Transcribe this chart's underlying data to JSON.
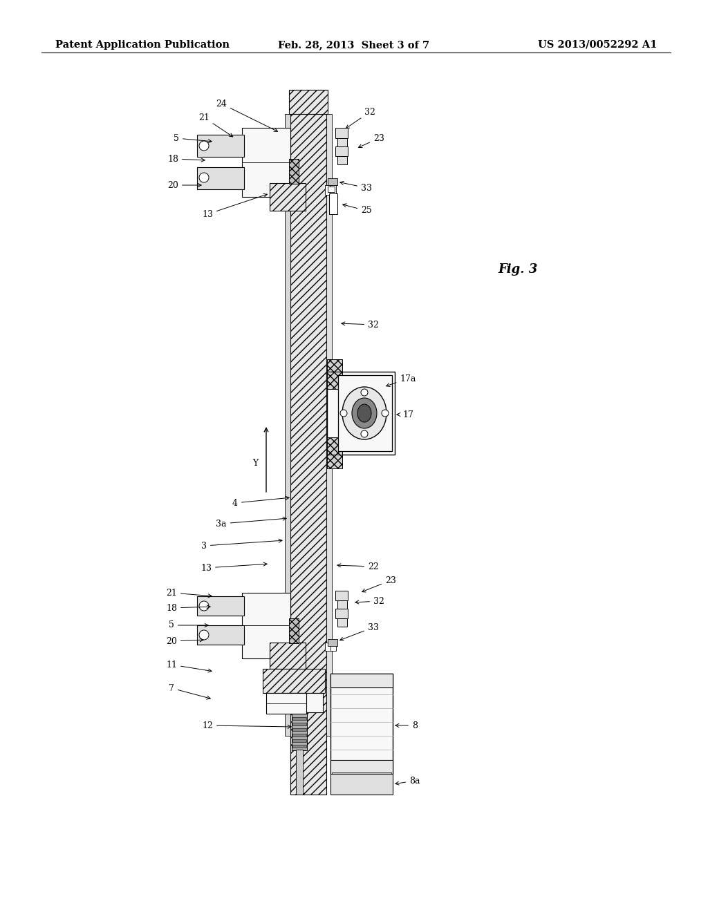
{
  "background_color": "#ffffff",
  "header_left": "Patent Application Publication",
  "header_center": "Feb. 28, 2013  Sheet 3 of 7",
  "header_right": "US 2013/0052292 A1",
  "figure_label": "Fig. 3",
  "title_fontsize": 10.5,
  "annotation_fontsize": 9.0,
  "colors": {
    "hatch_fill": "#e8e8e8",
    "hatch_cross": "#d0d0d0",
    "white_part": "#f8f8f8",
    "gray_part": "#e0e0e0",
    "dark_gray": "#c0c0c0",
    "edge": "#000000",
    "line": "#000000"
  }
}
